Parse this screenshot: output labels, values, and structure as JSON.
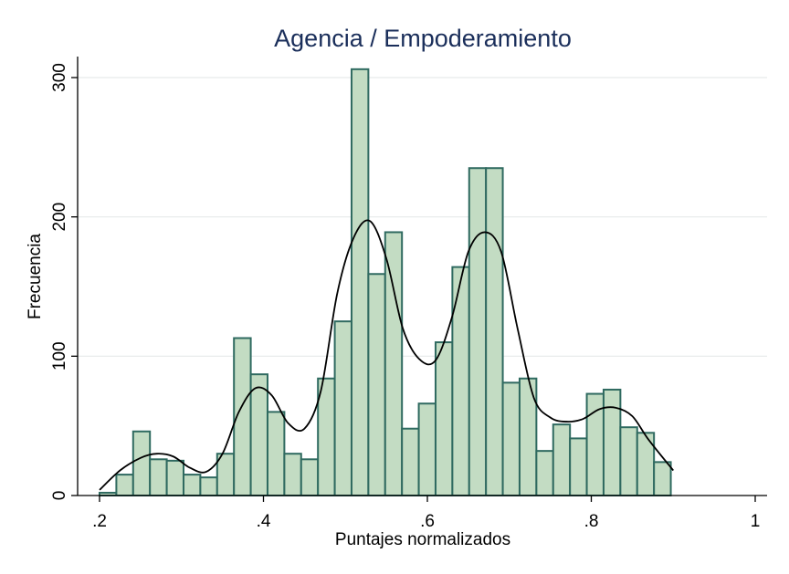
{
  "chart_data": {
    "type": "bar",
    "subtype": "histogram-with-density",
    "title": "Agencia / Empoderamiento",
    "xlabel": "Puntajes normalizados",
    "ylabel": "Frecuencia",
    "xlim": [
      0.2,
      1.0
    ],
    "ylim": [
      0,
      320
    ],
    "x_ticks": [
      0.2,
      0.4,
      0.6,
      0.8,
      1.0
    ],
    "x_tick_labels": [
      ".2",
      ".4",
      ".6",
      ".8",
      "1"
    ],
    "y_ticks": [
      0,
      100,
      200,
      300
    ],
    "y_tick_labels": [
      "0",
      "100",
      "200",
      "300"
    ],
    "grid": true,
    "bin_start": 0.2,
    "bin_width": 0.0205,
    "values": [
      2,
      15,
      46,
      26,
      25,
      15,
      13,
      30,
      113,
      87,
      60,
      30,
      26,
      84,
      125,
      306,
      159,
      189,
      48,
      66,
      110,
      164,
      235,
      235,
      81,
      84,
      32,
      51,
      41,
      73,
      76,
      49,
      45,
      24
    ],
    "density_curve": {
      "x": [
        0.2,
        0.225,
        0.25,
        0.27,
        0.29,
        0.31,
        0.33,
        0.35,
        0.37,
        0.39,
        0.41,
        0.43,
        0.45,
        0.47,
        0.49,
        0.51,
        0.53,
        0.55,
        0.57,
        0.59,
        0.61,
        0.63,
        0.65,
        0.67,
        0.69,
        0.71,
        0.73,
        0.75,
        0.77,
        0.79,
        0.81,
        0.83,
        0.85,
        0.87,
        0.9
      ],
      "y": [
        4,
        18,
        27,
        30,
        28,
        20,
        17,
        30,
        60,
        77,
        72,
        52,
        48,
        75,
        145,
        185,
        197,
        170,
        120,
        98,
        97,
        128,
        175,
        189,
        175,
        120,
        70,
        56,
        53,
        55,
        62,
        63,
        57,
        40,
        18
      ]
    },
    "colors": {
      "bar_fill": "#c3dcc3",
      "bar_outline": "#2f6a60",
      "density_line": "#000000",
      "title": "#1a2e5a",
      "grid": "#e6eaea"
    }
  }
}
